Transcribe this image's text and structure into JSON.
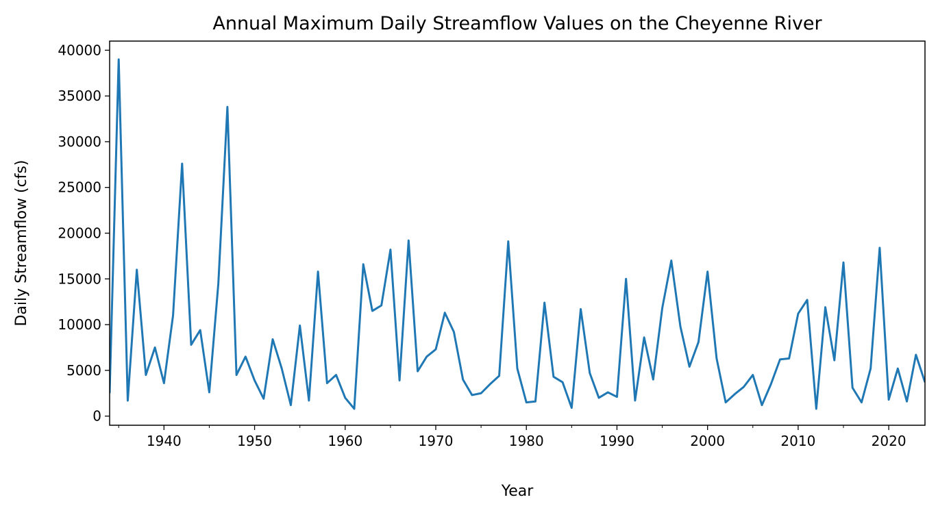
{
  "chart_data": {
    "type": "line",
    "title": "Annual Maximum Daily Streamflow Values on the Cheyenne River",
    "xlabel": "Year",
    "ylabel": "Daily Streamflow (cfs)",
    "xlim": [
      1934,
      2024
    ],
    "ylim": [
      -1000,
      41000
    ],
    "x_ticks": [
      1940,
      1950,
      1960,
      1970,
      1980,
      1990,
      2000,
      2010,
      2020
    ],
    "x_tick_labels": [
      "1940",
      "1950",
      "1960",
      "1970",
      "1980",
      "1990",
      "2000",
      "2010",
      "2020"
    ],
    "y_ticks": [
      0,
      5000,
      10000,
      15000,
      20000,
      25000,
      30000,
      35000,
      40000
    ],
    "y_tick_labels": [
      "0",
      "5000",
      "10000",
      "15000",
      "20000",
      "25000",
      "30000",
      "35000",
      "40000"
    ],
    "grid": false,
    "legend": "none",
    "series": [
      {
        "color": "#1f77b4",
        "x": [
          1934,
          1935,
          1936,
          1937,
          1938,
          1939,
          1940,
          1941,
          1942,
          1943,
          1944,
          1945,
          1946,
          1947,
          1948,
          1949,
          1950,
          1951,
          1952,
          1953,
          1954,
          1955,
          1956,
          1957,
          1958,
          1959,
          1960,
          1961,
          1962,
          1963,
          1964,
          1965,
          1966,
          1967,
          1968,
          1969,
          1970,
          1971,
          1972,
          1973,
          1974,
          1975,
          1976,
          1977,
          1978,
          1979,
          1980,
          1981,
          1982,
          1983,
          1984,
          1985,
          1986,
          1987,
          1988,
          1989,
          1990,
          1991,
          1992,
          1993,
          1994,
          1995,
          1996,
          1997,
          1998,
          1999,
          2000,
          2001,
          2002,
          2003,
          2004,
          2005,
          2006,
          2007,
          2008,
          2009,
          2010,
          2011,
          2012,
          2013,
          2014,
          2015,
          2016,
          2017,
          2018,
          2019,
          2020,
          2021,
          2022,
          2023,
          2024
        ],
        "values": [
          2500,
          39000,
          1700,
          16000,
          4500,
          7500,
          3600,
          11000,
          27600,
          7800,
          9400,
          2600,
          14500,
          33800,
          4500,
          6500,
          3900,
          1900,
          8400,
          5200,
          1200,
          9900,
          1700,
          15800,
          3600,
          4500,
          2000,
          800,
          16600,
          11500,
          12100,
          18200,
          3900,
          19200,
          4900,
          6500,
          7300,
          11300,
          9200,
          4000,
          2300,
          2500,
          3500,
          4400,
          19100,
          5200,
          1500,
          1600,
          12400,
          4300,
          3700,
          900,
          11700,
          4700,
          2000,
          2600,
          2100,
          15000,
          1700,
          8600,
          4000,
          11800,
          17000,
          9800,
          5400,
          8100,
          15800,
          6300,
          1500,
          2400,
          3200,
          4500,
          1200,
          3500,
          6200,
          6300,
          11200,
          12700,
          800,
          11900,
          6100,
          16800,
          3100,
          1500,
          5200,
          18400,
          1800,
          5200,
          1600,
          6700,
          3700
        ]
      }
    ]
  }
}
